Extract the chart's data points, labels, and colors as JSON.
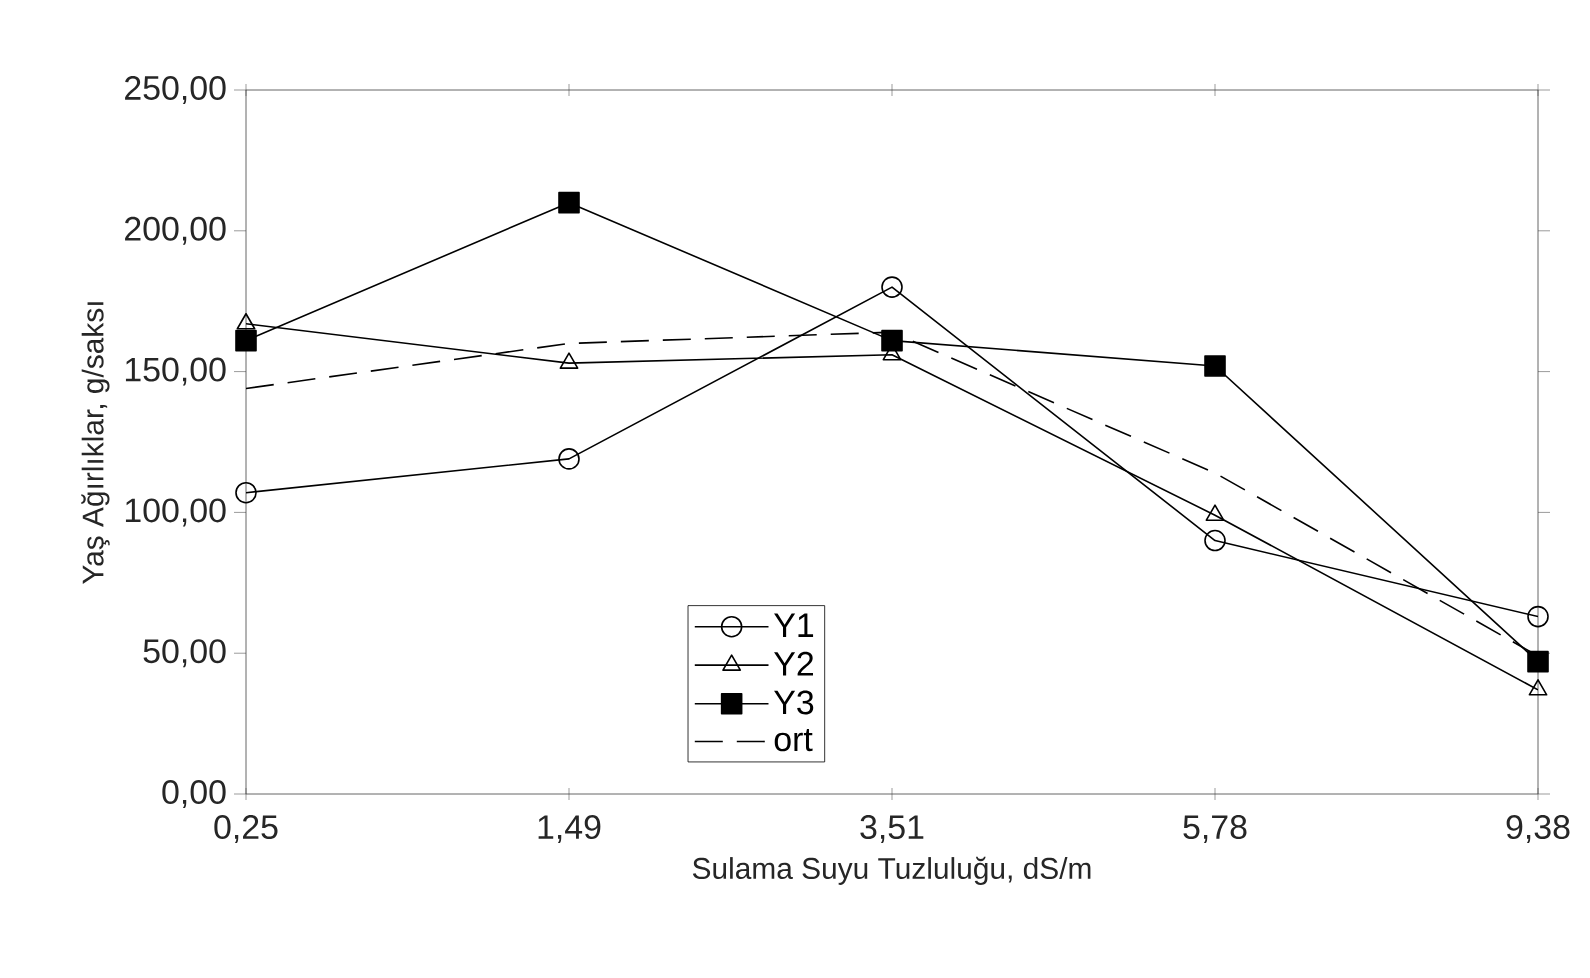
{
  "chart_data": {
    "type": "line",
    "xlabel": "Sulama Suyu Tuzluluğu, dS/m",
    "ylabel": "Yaş Ağırlıklar, g/saksı",
    "categories": [
      "0,25",
      "1,49",
      "3,51",
      "5,78",
      "9,38"
    ],
    "ylim": [
      0,
      250
    ],
    "yticks": [
      {
        "value": 0,
        "label": "0,00"
      },
      {
        "value": 50,
        "label": "50,00"
      },
      {
        "value": 100,
        "label": "100,00"
      },
      {
        "value": 150,
        "label": "150,00"
      },
      {
        "value": 200,
        "label": "200,00"
      },
      {
        "value": 250,
        "label": "250,00"
      }
    ],
    "grid": false,
    "legend": "bottom",
    "series": [
      {
        "name": "Y1",
        "color": "#000000",
        "marker": "circle",
        "line_style": "solid",
        "values": [
          107,
          119,
          180,
          90,
          63
        ]
      },
      {
        "name": "Y2",
        "color": "#000000",
        "marker": "triangle",
        "line_style": "solid",
        "values": [
          167,
          153,
          156,
          99,
          37
        ]
      },
      {
        "name": "Y3",
        "color": "#000000",
        "marker": "square",
        "line_style": "solid",
        "values": [
          161,
          210,
          161,
          152,
          47
        ]
      },
      {
        "name": "ort",
        "color": "#000000",
        "marker": "none",
        "line_style": "dashed",
        "values": [
          144,
          160,
          164,
          114,
          49
        ]
      }
    ]
  }
}
